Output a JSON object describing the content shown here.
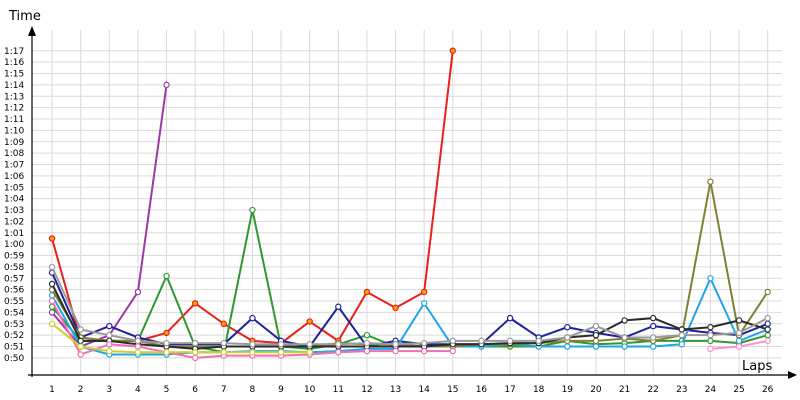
{
  "chart_data": {
    "type": "line",
    "ylabel": "Time",
    "xlabel": "Laps",
    "x": [
      1,
      2,
      3,
      4,
      5,
      6,
      7,
      8,
      9,
      10,
      11,
      12,
      13,
      14,
      15,
      16,
      17,
      18,
      19,
      20,
      21,
      22,
      23,
      24,
      25,
      26
    ],
    "x_tick_labels": [
      "1",
      "2",
      "3",
      "4",
      "5",
      "6",
      "7",
      "8",
      "9",
      "10",
      "11",
      "12",
      "13",
      "14",
      "15",
      "16",
      "17",
      "18",
      "19",
      "20",
      "21",
      "22",
      "23",
      "24",
      "25",
      "26"
    ],
    "y_tick_labels": [
      "0:50",
      "0:51",
      "0:52",
      "0:53",
      "0:54",
      "0:55",
      "0:56",
      "0:57",
      "0:58",
      "0:59",
      "1:00",
      "1:01",
      "1:02",
      "1:03",
      "1:04",
      "1:05",
      "1:06",
      "1:07",
      "1:08",
      "1:09",
      "1:10",
      "1:11",
      "1:12",
      "1:13",
      "1:14",
      "1:15",
      "1:16",
      "1:17"
    ],
    "y_unit": "seconds",
    "ylim": [
      48.5,
      79
    ],
    "xlim": [
      0.3,
      26.5
    ],
    "grid": true,
    "series": [
      {
        "color": "#e8201a",
        "values": [
          60.5,
          51.5,
          51.5,
          51.5,
          52.2,
          54.8,
          53.0,
          51.5,
          51.3,
          53.2,
          51.5,
          55.8,
          54.4,
          55.8,
          77.0,
          null,
          null,
          null,
          null,
          null,
          null,
          null,
          null,
          null,
          null,
          null
        ]
      },
      {
        "color": "#9b3aa5",
        "values": [
          54.0,
          51.0,
          52.0,
          55.8,
          74.0,
          null,
          null,
          null,
          null,
          null,
          null,
          null,
          null,
          null,
          null,
          null,
          null,
          null,
          null,
          null,
          null,
          null,
          null,
          null,
          null,
          null
        ]
      },
      {
        "color": "#2e9a2e",
        "values": [
          54.5,
          51.5,
          51.5,
          51.5,
          57.2,
          51.0,
          50.5,
          63.0,
          51.0,
          50.8,
          51.2,
          52.0,
          51.0,
          51.0,
          51.0,
          51.0,
          51.0,
          51.0,
          51.5,
          51.2,
          51.3,
          51.5,
          51.5,
          51.5,
          51.3,
          52.0
        ]
      },
      {
        "color": "#20209a",
        "values": [
          57.5,
          51.8,
          52.8,
          51.8,
          51.2,
          51.2,
          51.2,
          53.5,
          51.5,
          51.0,
          54.5,
          51.0,
          51.5,
          51.2,
          51.2,
          51.2,
          53.5,
          51.8,
          52.7,
          52.2,
          51.8,
          52.8,
          52.5,
          52.2,
          52.0,
          53.0
        ]
      },
      {
        "color": "#1fa6e8",
        "values": [
          55.5,
          51.0,
          50.3,
          50.3,
          50.3,
          50.5,
          50.5,
          50.6,
          50.6,
          50.5,
          50.6,
          50.8,
          50.8,
          54.8,
          51.0,
          51.0,
          51.2,
          51.0,
          51.0,
          51.0,
          51.0,
          51.0,
          51.2,
          57.0,
          51.5,
          52.5
        ]
      },
      {
        "color": "#7f8036",
        "values": [
          56.0,
          51.8,
          51.5,
          51.5,
          51.0,
          51.0,
          51.0,
          51.0,
          51.0,
          51.0,
          51.3,
          51.2,
          51.2,
          51.0,
          51.0,
          51.2,
          51.2,
          51.3,
          51.5,
          51.5,
          51.7,
          51.5,
          52.0,
          65.5,
          52.0,
          55.8
        ]
      },
      {
        "color": "#2b2b2b",
        "values": [
          56.5,
          51.5,
          51.5,
          51.2,
          51.0,
          50.8,
          51.0,
          51.0,
          51.0,
          51.0,
          51.0,
          51.0,
          51.0,
          51.0,
          51.2,
          51.2,
          51.3,
          51.3,
          51.8,
          52.0,
          53.3,
          53.5,
          52.5,
          52.7,
          53.3,
          52.5
        ]
      },
      {
        "color": "#9a9a9a",
        "values": [
          58.0,
          52.5,
          52.0,
          51.5,
          51.3,
          51.3,
          51.3,
          51.2,
          51.2,
          51.2,
          51.2,
          51.3,
          51.2,
          51.3,
          51.5,
          51.5,
          51.5,
          51.5,
          51.8,
          52.8,
          51.8,
          51.8,
          52.0,
          52.0,
          52.2,
          53.5
        ]
      },
      {
        "color": "#f06fb0",
        "values": [
          55.0,
          50.3,
          51.2,
          51.0,
          50.5,
          50.0,
          50.2,
          50.2,
          50.2,
          50.3,
          50.5,
          50.6,
          50.6,
          50.6,
          50.6,
          null,
          null,
          null,
          null,
          null,
          null,
          null,
          null,
          null,
          null,
          null
        ]
      },
      {
        "color": "#cfd030",
        "values": [
          53.0,
          51.0,
          50.6,
          50.5,
          50.5,
          50.5,
          50.5,
          50.5,
          50.5,
          50.5,
          null,
          null,
          null,
          null,
          null,
          null,
          null,
          null,
          null,
          null,
          null,
          null,
          null,
          null,
          null,
          null
        ]
      },
      {
        "color": "#ff8fd0",
        "values": [
          null,
          null,
          null,
          null,
          null,
          null,
          null,
          null,
          null,
          null,
          null,
          null,
          null,
          null,
          null,
          null,
          null,
          null,
          null,
          null,
          null,
          null,
          null,
          50.8,
          51.0,
          51.5
        ]
      }
    ]
  }
}
